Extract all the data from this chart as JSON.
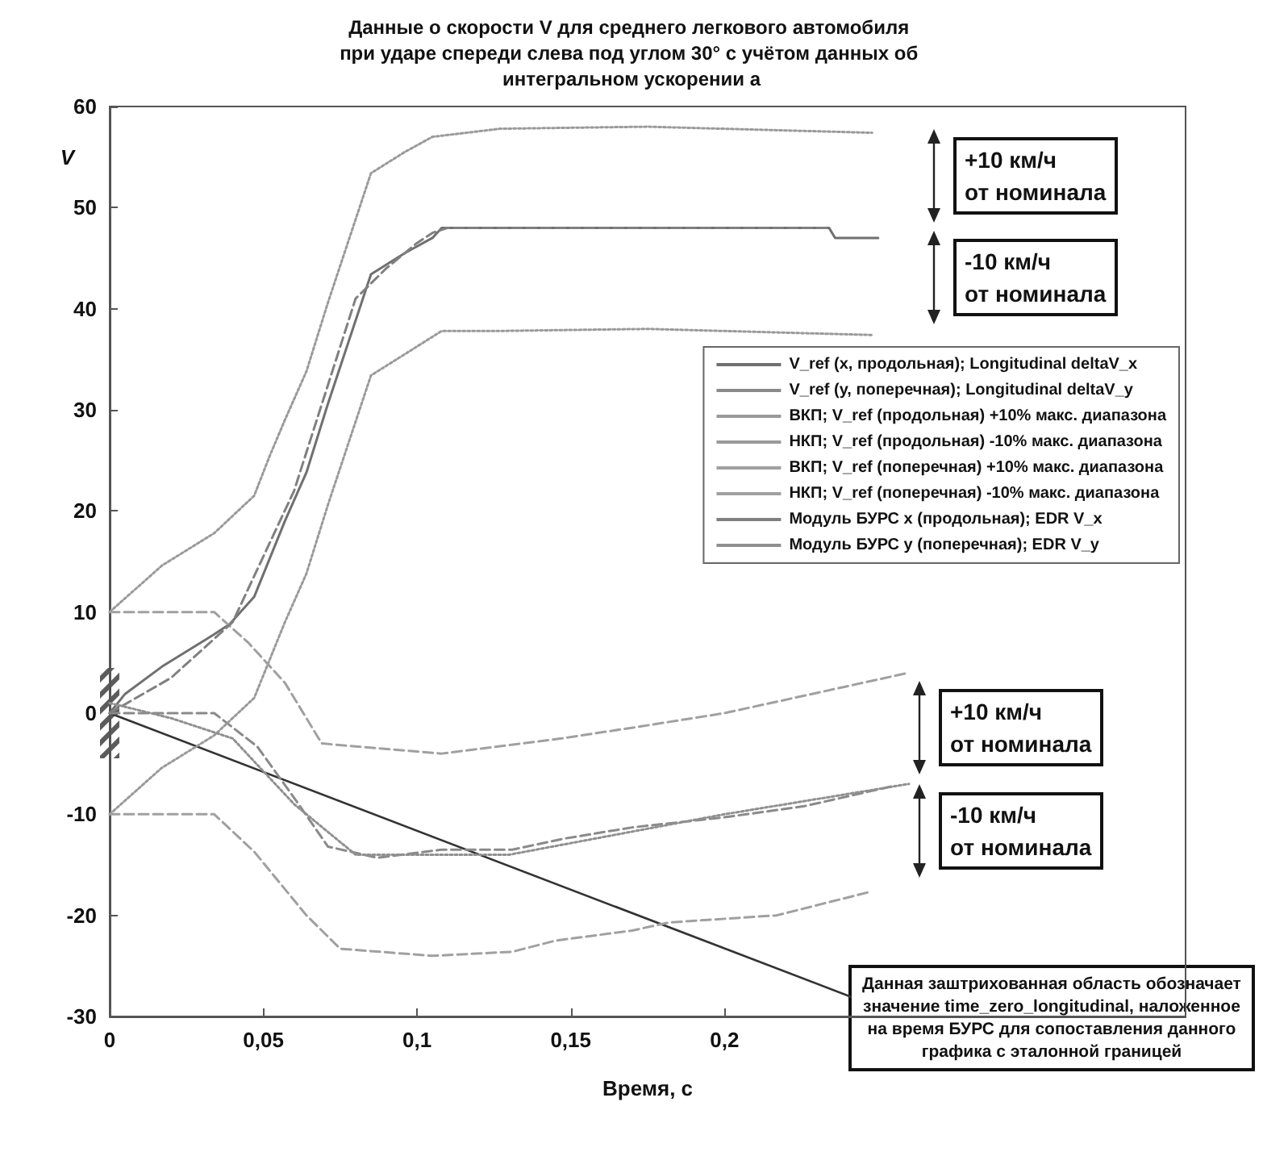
{
  "chart_data": {
    "type": "line",
    "title": "Данные о скорости V для среднего легкового автомобиля при ударе спереди слева под углом 30° с учётом данных об интегральном ускорении a",
    "xlabel": "Время, с",
    "ylabel": "V",
    "xlim": [
      0,
      0.35
    ],
    "xticks": [
      0,
      {
        "value": 0.05,
        "label": "0,05"
      },
      {
        "value": 0.1,
        "label": "0,1"
      },
      {
        "value": 0.15,
        "label": "0,15"
      },
      {
        "value": 0.2,
        "label": "0,2"
      }
    ],
    "ylim": [
      -30,
      60
    ],
    "yticks": [
      -30,
      -20,
      -10,
      0,
      10,
      20,
      30,
      40,
      50,
      60
    ],
    "grid": false,
    "legend": "right",
    "marker": "none",
    "series": [
      {
        "name": "V_ref (x, продольная); Longitudinal deltaV_x",
        "color": "#707070",
        "line_style": "solid",
        "x": [
          0,
          0.005,
          0.017,
          0.034,
          0.039,
          0.047,
          0.057,
          0.064,
          0.071,
          0.078,
          0.085,
          0.096,
          0.105,
          0.108,
          0.15,
          0.2,
          0.234,
          0.236,
          0.25
        ],
        "values": [
          0,
          1.9,
          4.6,
          7.8,
          8.8,
          11.5,
          19,
          23.8,
          30.6,
          37,
          43.4,
          45.5,
          47,
          48,
          48,
          48,
          48,
          47,
          47
        ]
      },
      {
        "name": "V_ref (y, поперечная); Longitudinal deltaV_y",
        "color": "#8a8a8a",
        "line_style": "dashed",
        "x": [
          0,
          0.034,
          0.048,
          0.061,
          0.071,
          0.087,
          0.108,
          0.131,
          0.148,
          0.17,
          0.2,
          0.226,
          0.255
        ],
        "values": [
          0,
          0,
          -3.3,
          -8.8,
          -13.2,
          -14.3,
          -13.5,
          -13.5,
          -12.4,
          -11.3,
          -10.3,
          -9.2,
          -7.2
        ]
      },
      {
        "name": "ВКП; V_ref (продольная) +10% макс. диапазона",
        "color": "#9a9a9a",
        "line_style": "dotted",
        "x": [
          0,
          0.017,
          0.034,
          0.047,
          0.052,
          0.057,
          0.064,
          0.071,
          0.078,
          0.085,
          0.096,
          0.105,
          0.127,
          0.175,
          0.248
        ],
        "values": [
          10,
          14.6,
          17.8,
          21.5,
          25.4,
          29,
          33.8,
          40.6,
          47,
          53.4,
          55.5,
          57,
          57.8,
          58,
          57.4
        ]
      },
      {
        "name": "НКП; V_ref (продольная) -10% макс. диапазона",
        "color": "#9a9a9a",
        "line_style": "dotted",
        "x": [
          0,
          0.017,
          0.034,
          0.047,
          0.057,
          0.064,
          0.071,
          0.078,
          0.085,
          0.096,
          0.108,
          0.127,
          0.175,
          0.248
        ],
        "values": [
          -10,
          -5.4,
          -2.2,
          1.5,
          9,
          13.8,
          20.6,
          27,
          33.4,
          35.5,
          37.8,
          37.8,
          38,
          37.4
        ]
      },
      {
        "name": "ВКП; V_ref (поперечная) +10% макс. диапазона",
        "color": "#a0a0a0",
        "line_style": "dashed",
        "x": [
          0,
          0.034,
          0.045,
          0.057,
          0.069,
          0.108,
          0.147,
          0.173,
          0.2,
          0.23,
          0.26
        ],
        "values": [
          10,
          10,
          7,
          3,
          -3,
          -4,
          -2.5,
          -1.3,
          0,
          2,
          4
        ]
      },
      {
        "name": "НКП; V_ref (поперечная) -10% макс. диапазона",
        "color": "#a0a0a0",
        "line_style": "dashed",
        "x": [
          0,
          0.034,
          0.047,
          0.064,
          0.075,
          0.105,
          0.131,
          0.145,
          0.17,
          0.182,
          0.217,
          0.247
        ],
        "values": [
          -10,
          -10,
          -13.7,
          -20,
          -23.3,
          -24,
          -23.6,
          -22.5,
          -21.5,
          -20.7,
          -20,
          -17.7
        ]
      },
      {
        "name": "Модуль БУРС x (продольная); EDR V_x",
        "color": "#808080",
        "line_style": "dashed",
        "x": [
          0,
          0.02,
          0.04,
          0.06,
          0.08,
          0.09,
          0.1,
          0.105,
          0.11,
          0.234
        ],
        "values": [
          0,
          3.5,
          9,
          22,
          41,
          44,
          46.5,
          47.5,
          48,
          48
        ]
      },
      {
        "name": "Модуль БУРС y (поперечная); EDR V_y",
        "color": "#909090",
        "line_style": "dotted",
        "x": [
          0,
          0.02,
          0.04,
          0.06,
          0.08,
          0.13,
          0.2,
          0.26
        ],
        "values": [
          1,
          -0.5,
          -2.5,
          -9,
          -14,
          -14,
          -10,
          -7
        ]
      }
    ],
    "annotations": [
      "+10 км/ч\nот номинала",
      "-10 км/ч\nот номинала",
      "+10 км/ч\nот номинала",
      "-10 км/ч\nот номинала",
      {
        "text": "Данная заштрихованная область обозначает значение time_zero_longitudinal, наложенное на время БУРС для сопоставления данного графика с эталонной границей",
        "x": 0,
        "y": 0
      }
    ]
  }
}
